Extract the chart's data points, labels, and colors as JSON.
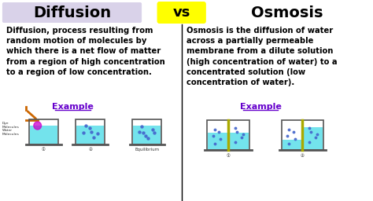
{
  "bg_color": "#ffffff",
  "title_diffusion": "Diffusion",
  "title_osmosis": "Osmosis",
  "vs_text": "vs",
  "vs_bg": "#ffff00",
  "title_color": "#000000",
  "title_diffusion_bg": "#d9d2e9",
  "diffusion_body": "Diffusion, process resulting from\nrandom motion of molecules by\nwhich there is a net flow of matter\nfrom a region of high concentration\nto a region of low concentration.",
  "osmosis_body": "Osmosis is the diffusion of water\nacross a partially permeable\nmembrane from a dilute solution\n(high concentration of water) to a\nconcentrated solution (low\nconcentration of water).",
  "example_label": "Example",
  "example_color": "#6600cc",
  "divider_color": "#000000",
  "text_color": "#000000",
  "body_fontsize": 7.2,
  "title_fontsize": 14,
  "example_fontsize": 8,
  "water_color": "#00ccdd",
  "water_alpha": 0.55,
  "beaker_edge": "#555555",
  "dot_color_dye": "#cc00cc",
  "dot_color_blue": "#4466cc",
  "membrane_color": "#aaaa00",
  "dropper_color": "#cc6600"
}
